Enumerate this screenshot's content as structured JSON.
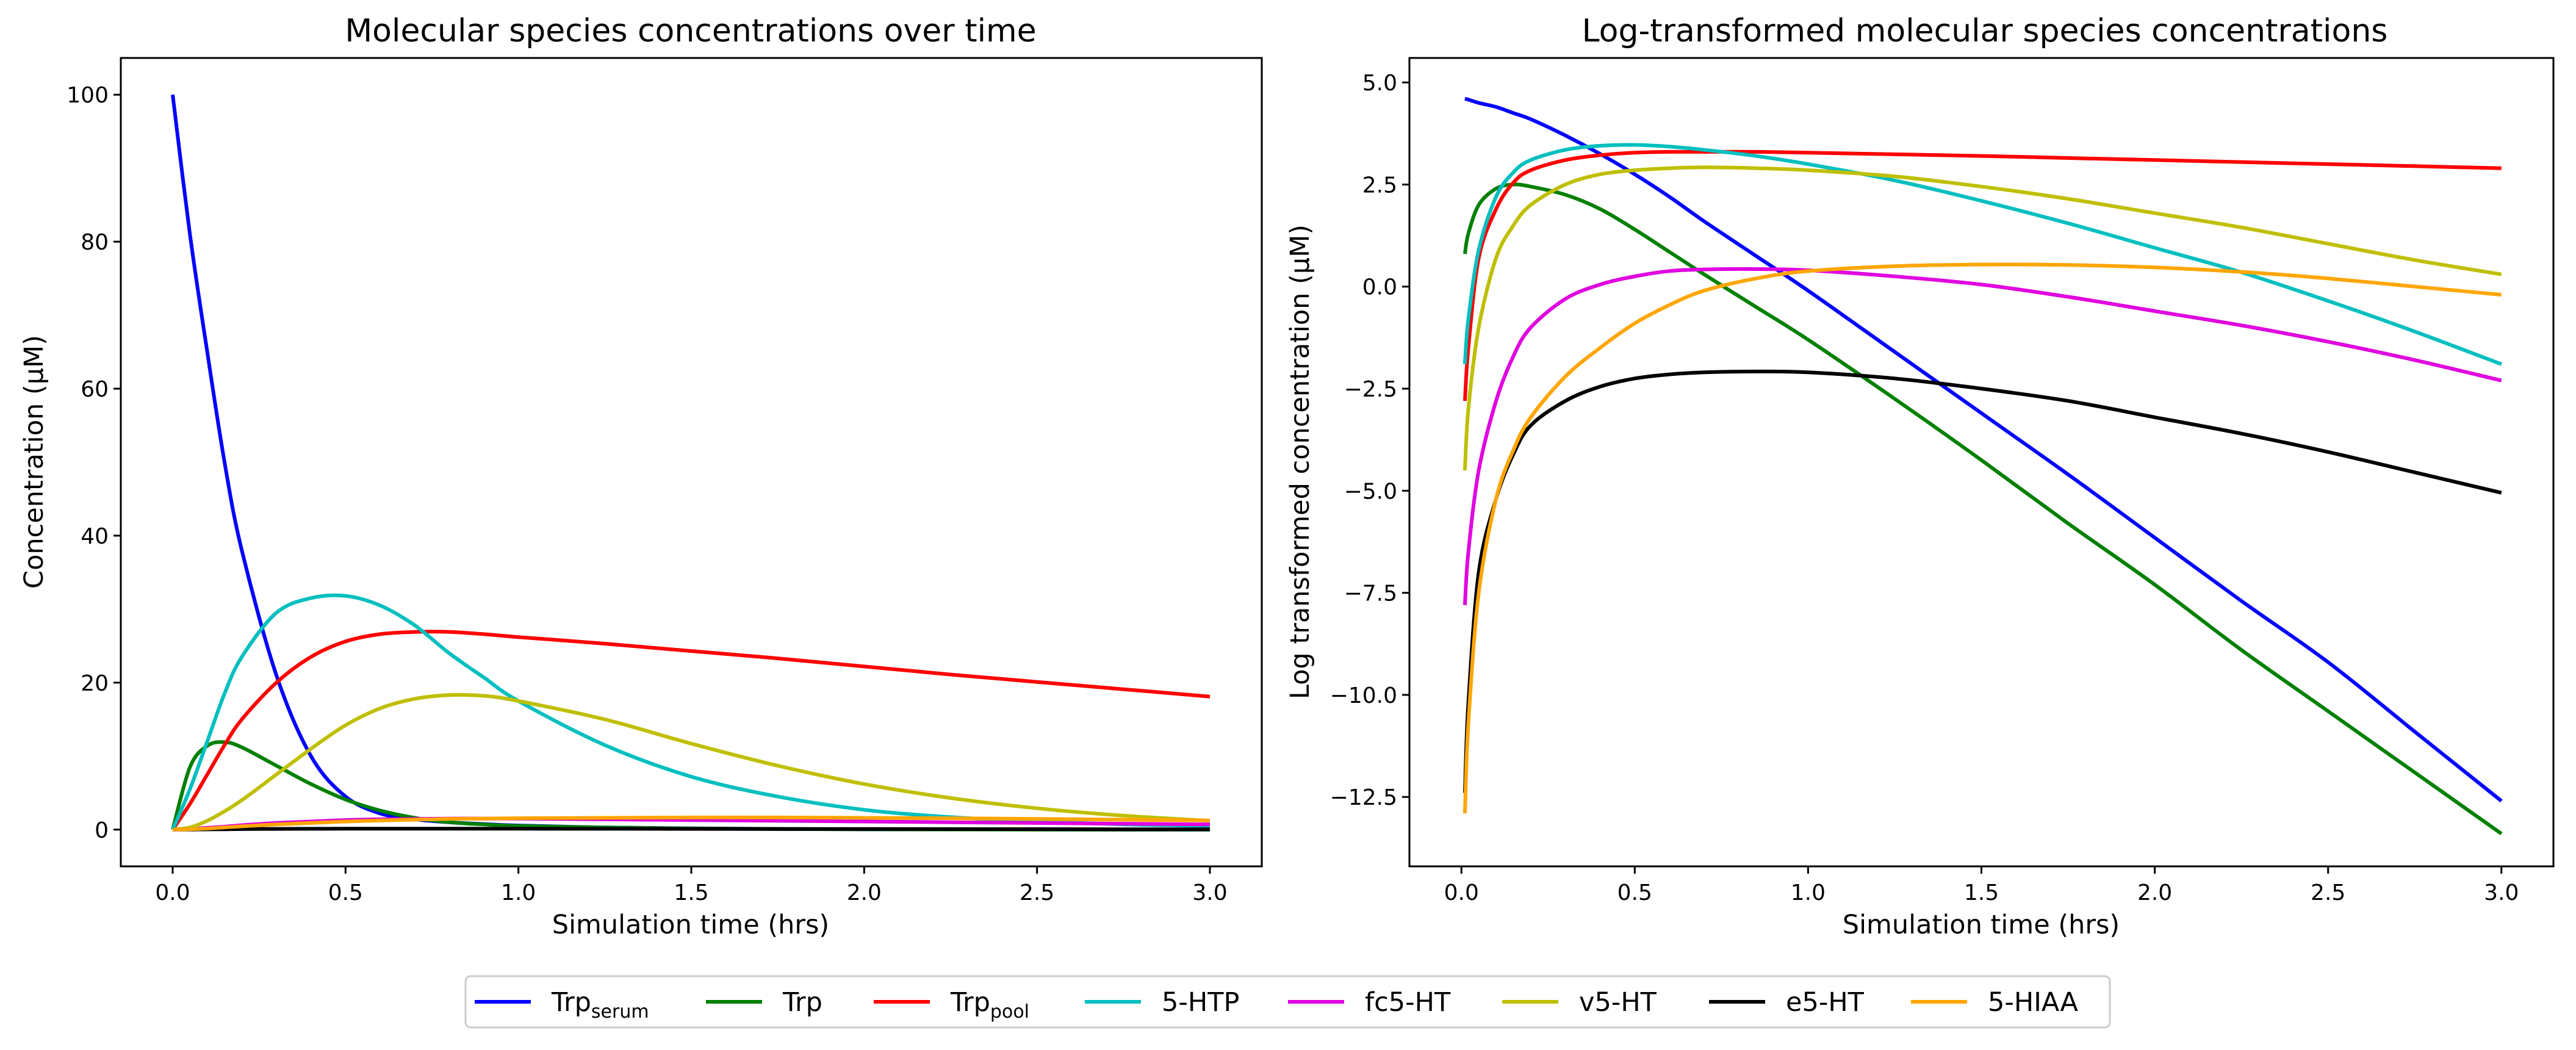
{
  "chart_data": [
    {
      "type": "line",
      "title": "Molecular species concentrations over time",
      "xlabel": "Simulation time (hrs)",
      "ylabel": "Concentration (µM)",
      "xlim": [
        -0.15,
        3.15
      ],
      "ylim": [
        -5,
        105
      ],
      "xticks": [
        {
          "value": 0.0,
          "label": "0.0"
        },
        {
          "value": 0.5,
          "label": "0.5"
        },
        {
          "value": 1.0,
          "label": "1.0"
        },
        {
          "value": 1.5,
          "label": "1.5"
        },
        {
          "value": 2.0,
          "label": "2.0"
        },
        {
          "value": 2.5,
          "label": "2.5"
        },
        {
          "value": 3.0,
          "label": "3.0"
        }
      ],
      "yticks": [
        {
          "value": 0,
          "label": "0"
        },
        {
          "value": 20,
          "label": "20"
        },
        {
          "value": 40,
          "label": "40"
        },
        {
          "value": 60,
          "label": "60"
        },
        {
          "value": 80,
          "label": "80"
        },
        {
          "value": 100,
          "label": "100"
        }
      ],
      "x": [
        0,
        0.05,
        0.1,
        0.15,
        0.2,
        0.3,
        0.4,
        0.5,
        0.6,
        0.7,
        0.8,
        0.9,
        1.0,
        1.25,
        1.5,
        1.75,
        2.0,
        2.25,
        2.5,
        2.75,
        3.0
      ],
      "series": [
        {
          "name": "Trp_serum",
          "color": "#0000ff",
          "values": [
            100,
            81,
            65,
            50,
            38,
            21,
            10,
            4.5,
            2.2,
            1.4,
            1.0,
            0.75,
            0.55,
            0.3,
            0.17,
            0.09,
            0.05,
            0.03,
            0.02,
            0.01,
            0.0
          ]
        },
        {
          "name": "Trp",
          "color": "#008000",
          "values": [
            0,
            8.5,
            11.4,
            11.9,
            11.2,
            8.7,
            6.2,
            4.1,
            2.6,
            1.6,
            1.0,
            0.7,
            0.5,
            0.3,
            0.15,
            0.08,
            0.04,
            0.02,
            0.01,
            0.0,
            0.0
          ]
        },
        {
          "name": "Trp_pool",
          "color": "#ff0000",
          "values": [
            0,
            3.5,
            7.5,
            11.5,
            15,
            20,
            23.5,
            25.6,
            26.6,
            26.9,
            26.9,
            26.6,
            26.2,
            25.3,
            24.3,
            23.3,
            22.2,
            21.1,
            20.1,
            19.1,
            18.1
          ]
        },
        {
          "name": "5-HTP",
          "color": "#00bfbf",
          "values": [
            0,
            5.5,
            12,
            18.5,
            23.5,
            29.5,
            31.5,
            31.8,
            30.5,
            27.8,
            24,
            20.7,
            17.5,
            11.5,
            7.2,
            4.5,
            2.7,
            1.7,
            1.1,
            0.7,
            0.5
          ]
        },
        {
          "name": "fc5-HT",
          "color": "#e000e0",
          "values": [
            0,
            0.1,
            0.25,
            0.4,
            0.6,
            0.9,
            1.1,
            1.3,
            1.4,
            1.45,
            1.5,
            1.5,
            1.5,
            1.4,
            1.3,
            1.2,
            1.1,
            1.0,
            0.9,
            0.8,
            0.7
          ]
        },
        {
          "name": "v5-HT",
          "color": "#bfbf00",
          "values": [
            0,
            0.3,
            1.2,
            2.5,
            4,
            7.5,
            11,
            14.2,
            16.5,
            17.8,
            18.3,
            18.2,
            17.5,
            15,
            11.7,
            8.7,
            6.2,
            4.3,
            2.9,
            1.9,
            1.2
          ]
        },
        {
          "name": "e5-HT",
          "color": "#000000",
          "values": [
            0,
            0.01,
            0.03,
            0.05,
            0.07,
            0.1,
            0.11,
            0.12,
            0.12,
            0.12,
            0.12,
            0.12,
            0.12,
            0.11,
            0.1,
            0.09,
            0.08,
            0.07,
            0.06,
            0.05,
            0.04
          ]
        },
        {
          "name": "5-HIAA",
          "color": "#ffa500",
          "values": [
            0,
            0.05,
            0.15,
            0.3,
            0.45,
            0.7,
            0.9,
            1.1,
            1.25,
            1.35,
            1.45,
            1.5,
            1.55,
            1.6,
            1.65,
            1.65,
            1.6,
            1.55,
            1.45,
            1.35,
            1.25
          ]
        }
      ]
    },
    {
      "type": "line",
      "title": "Log-transformed molecular species concentrations",
      "xlabel": "Simulation time (hrs)",
      "ylabel": "Log transformed concentration (µM)",
      "xlim": [
        -0.15,
        3.15
      ],
      "ylim": [
        -14.2,
        5.6
      ],
      "xticks": [
        {
          "value": 0.0,
          "label": "0.0"
        },
        {
          "value": 0.5,
          "label": "0.5"
        },
        {
          "value": 1.0,
          "label": "1.0"
        },
        {
          "value": 1.5,
          "label": "1.5"
        },
        {
          "value": 2.0,
          "label": "2.0"
        },
        {
          "value": 2.5,
          "label": "2.5"
        },
        {
          "value": 3.0,
          "label": "3.0"
        }
      ],
      "yticks": [
        {
          "value": 5.0,
          "label": "5.0"
        },
        {
          "value": 2.5,
          "label": "2.5"
        },
        {
          "value": 0.0,
          "label": "0.0"
        },
        {
          "value": -2.5,
          "label": "−2.5"
        },
        {
          "value": -5.0,
          "label": "−5.0"
        },
        {
          "value": -7.5,
          "label": "−7.5"
        },
        {
          "value": -10.0,
          "label": "−10.0"
        },
        {
          "value": -12.5,
          "label": "−12.5"
        }
      ],
      "x": [
        0.01,
        0.02,
        0.05,
        0.1,
        0.15,
        0.2,
        0.3,
        0.4,
        0.5,
        0.6,
        0.7,
        0.85,
        1.0,
        1.25,
        1.5,
        1.75,
        2.0,
        2.25,
        2.5,
        2.75,
        3.0
      ],
      "series": [
        {
          "name": "Trp_serum",
          "color": "#0000ff",
          "values": [
            4.6,
            4.58,
            4.5,
            4.4,
            4.25,
            4.1,
            3.7,
            3.25,
            2.75,
            2.2,
            1.6,
            0.75,
            -0.1,
            -1.6,
            -3.1,
            -4.6,
            -6.15,
            -7.7,
            -9.2,
            -10.9,
            -12.6
          ]
        },
        {
          "name": "Trp",
          "color": "#008000",
          "values": [
            0.8,
            1.3,
            2.0,
            2.4,
            2.5,
            2.45,
            2.25,
            1.9,
            1.4,
            0.85,
            0.3,
            -0.5,
            -1.3,
            -2.75,
            -4.25,
            -5.8,
            -7.3,
            -8.9,
            -10.4,
            -11.9,
            -13.4
          ]
        },
        {
          "name": "Trp_pool",
          "color": "#ff0000",
          "values": [
            -2.8,
            -1.5,
            0.7,
            1.9,
            2.55,
            2.85,
            3.1,
            3.22,
            3.28,
            3.3,
            3.3,
            3.3,
            3.28,
            3.24,
            3.2,
            3.15,
            3.1,
            3.05,
            3.0,
            2.95,
            2.9
          ]
        },
        {
          "name": "5-HTP",
          "color": "#00bfbf",
          "values": [
            -1.9,
            -0.8,
            0.9,
            2.2,
            2.8,
            3.1,
            3.35,
            3.45,
            3.47,
            3.43,
            3.35,
            3.2,
            3.0,
            2.6,
            2.1,
            1.55,
            0.95,
            0.35,
            -0.35,
            -1.1,
            -1.9
          ]
        },
        {
          "name": "fc5-HT",
          "color": "#e000e0",
          "values": [
            -7.8,
            -6.5,
            -4.5,
            -2.8,
            -1.7,
            -1.0,
            -0.3,
            0.05,
            0.25,
            0.38,
            0.42,
            0.43,
            0.4,
            0.25,
            0.05,
            -0.25,
            -0.6,
            -0.95,
            -1.35,
            -1.8,
            -2.3
          ]
        },
        {
          "name": "v5-HT",
          "color": "#bfbf00",
          "values": [
            -4.5,
            -3.0,
            -1.0,
            0.7,
            1.5,
            2.0,
            2.5,
            2.75,
            2.85,
            2.9,
            2.92,
            2.9,
            2.85,
            2.7,
            2.45,
            2.15,
            1.8,
            1.45,
            1.05,
            0.65,
            0.3
          ]
        },
        {
          "name": "e5-HT",
          "color": "#000000",
          "values": [
            -12.4,
            -10.2,
            -7.0,
            -5.2,
            -4.1,
            -3.4,
            -2.8,
            -2.45,
            -2.25,
            -2.15,
            -2.1,
            -2.08,
            -2.1,
            -2.25,
            -2.5,
            -2.8,
            -3.2,
            -3.6,
            -4.05,
            -4.55,
            -5.05
          ]
        },
        {
          "name": "5-HIAA",
          "color": "#ffa500",
          "values": [
            -12.9,
            -10.7,
            -7.5,
            -5.2,
            -4.0,
            -3.2,
            -2.2,
            -1.5,
            -0.9,
            -0.45,
            -0.1,
            0.2,
            0.38,
            0.5,
            0.54,
            0.53,
            0.47,
            0.36,
            0.2,
            0.0,
            -0.2
          ]
        }
      ]
    }
  ],
  "legend": {
    "entries": [
      {
        "base": "Trp",
        "sub": "serum",
        "color": "#0000ff"
      },
      {
        "base": "Trp",
        "sub": "",
        "color": "#008000"
      },
      {
        "base": "Trp",
        "sub": "pool",
        "color": "#ff0000"
      },
      {
        "base": "5-HTP",
        "sub": "",
        "color": "#00bfbf"
      },
      {
        "base": "fc5-HT",
        "sub": "",
        "color": "#e000e0"
      },
      {
        "base": "v5-HT",
        "sub": "",
        "color": "#bfbf00"
      },
      {
        "base": "e5-HT",
        "sub": "",
        "color": "#000000"
      },
      {
        "base": "5-HIAA",
        "sub": "",
        "color": "#ffa500"
      }
    ]
  }
}
